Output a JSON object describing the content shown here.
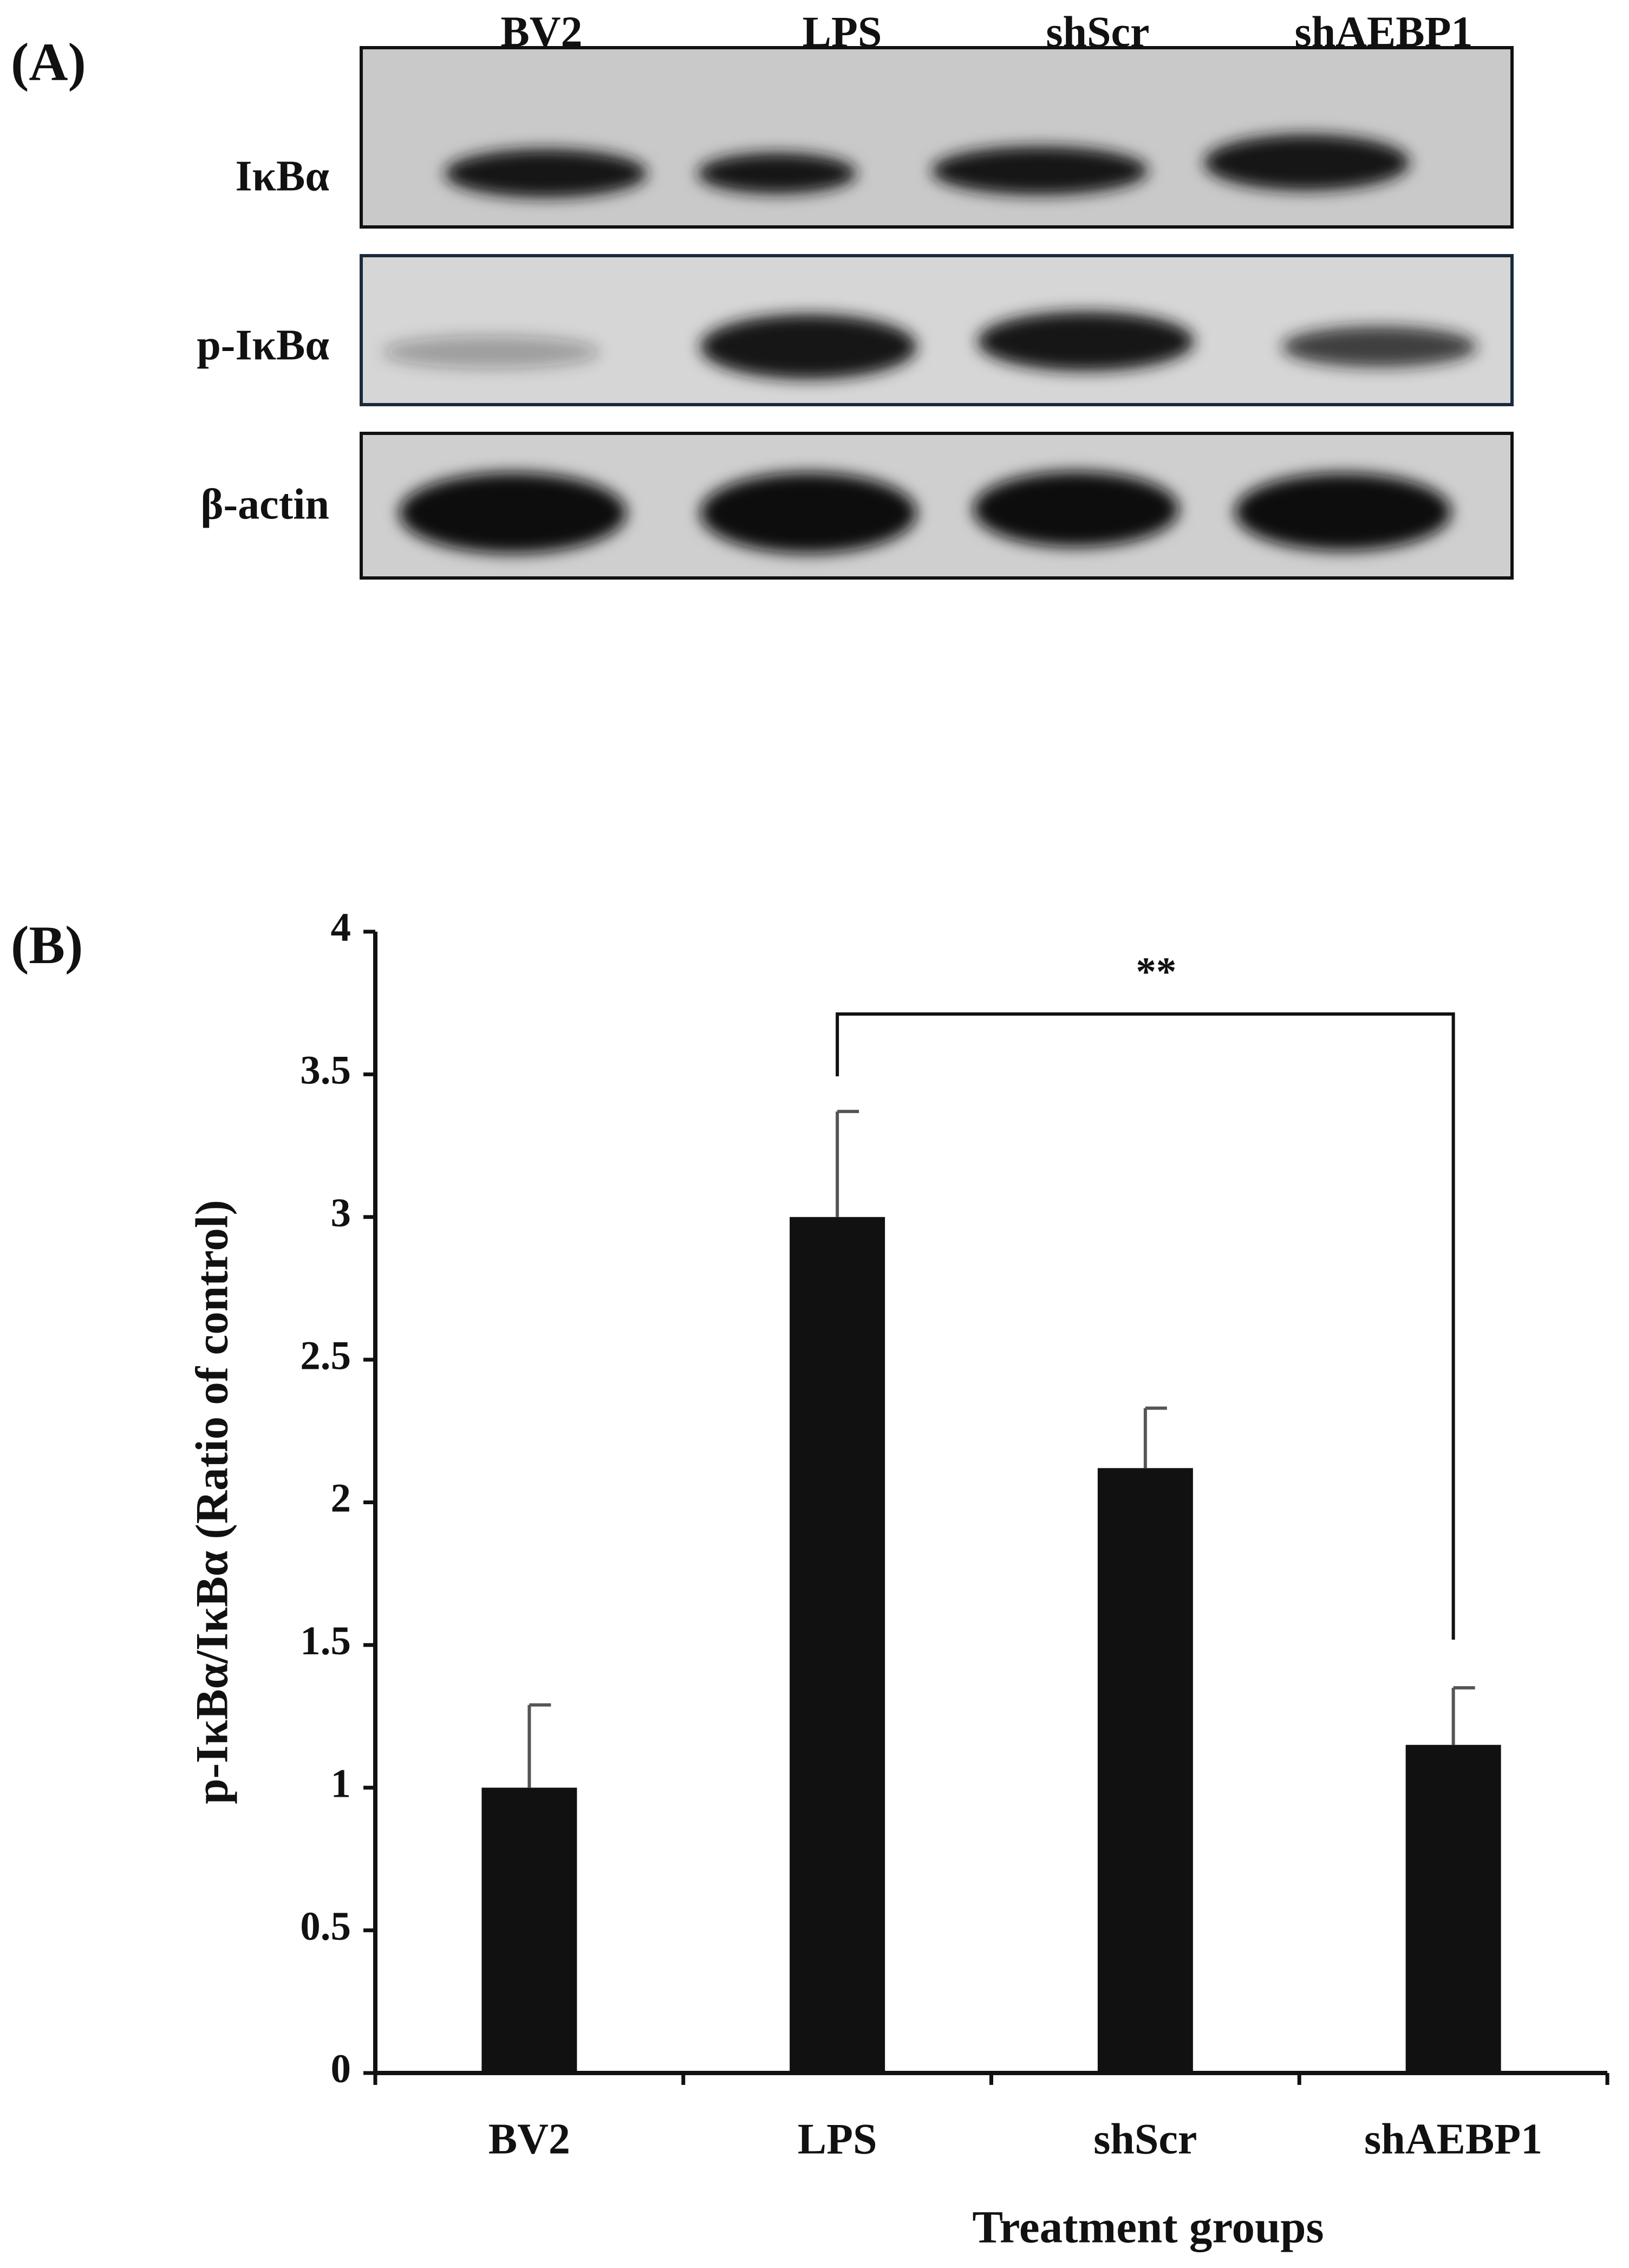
{
  "blot": {
    "label": "(A)",
    "lanes": [
      "BV2",
      "LPS",
      "shScr",
      "shAEBP1"
    ],
    "rows": [
      "IκBα",
      "p-IκBα",
      "β-actin"
    ]
  },
  "chart_data": {
    "type": "bar",
    "panel_label": "(B)",
    "x_label": "Treatment groups",
    "y_label": "p-IκBα/IκBα (Ratio of control)",
    "categories": [
      "BV2",
      "LPS",
      "shScr",
      "shAEBP1"
    ],
    "values": [
      1.0,
      3.0,
      2.12,
      1.15
    ],
    "errors": [
      0.29,
      0.37,
      0.21,
      0.2
    ],
    "color": "#111111",
    "ylim": [
      0,
      4
    ],
    "yticks": [
      0,
      0.5,
      1,
      1.5,
      2,
      2.5,
      3,
      3.5,
      4
    ],
    "annotation": "**"
  }
}
